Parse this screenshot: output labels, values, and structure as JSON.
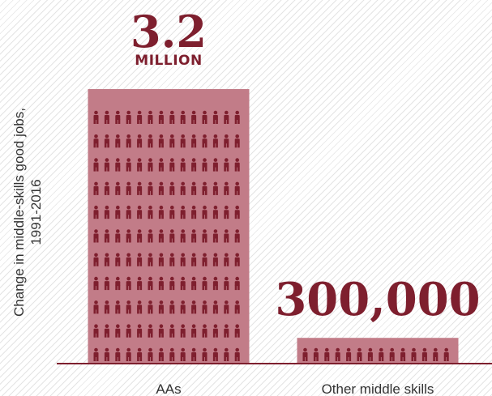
{
  "chart_data": {
    "type": "bar",
    "categories": [
      "AAs",
      "Other middle skills"
    ],
    "values": [
      3200000,
      300000
    ],
    "value_labels": [
      {
        "number": "3.2",
        "unit": "MILLION"
      },
      {
        "number": "300,000",
        "unit": ""
      }
    ],
    "ylabel_lines": [
      "Change in middle-skills good jobs,",
      "1991-2016"
    ],
    "xlabel": "",
    "ylim": [
      0,
      3200000
    ],
    "grid": false,
    "legend": "none",
    "colors": {
      "bar_fill": "#c27c88",
      "icon_fill": "#7e1f2e",
      "label_color": "#7e1f2e",
      "axis_color": "#7e1f2e",
      "text_color": "#333333",
      "hatch_color": "#e4e4e4"
    },
    "icon": "person-icon"
  }
}
